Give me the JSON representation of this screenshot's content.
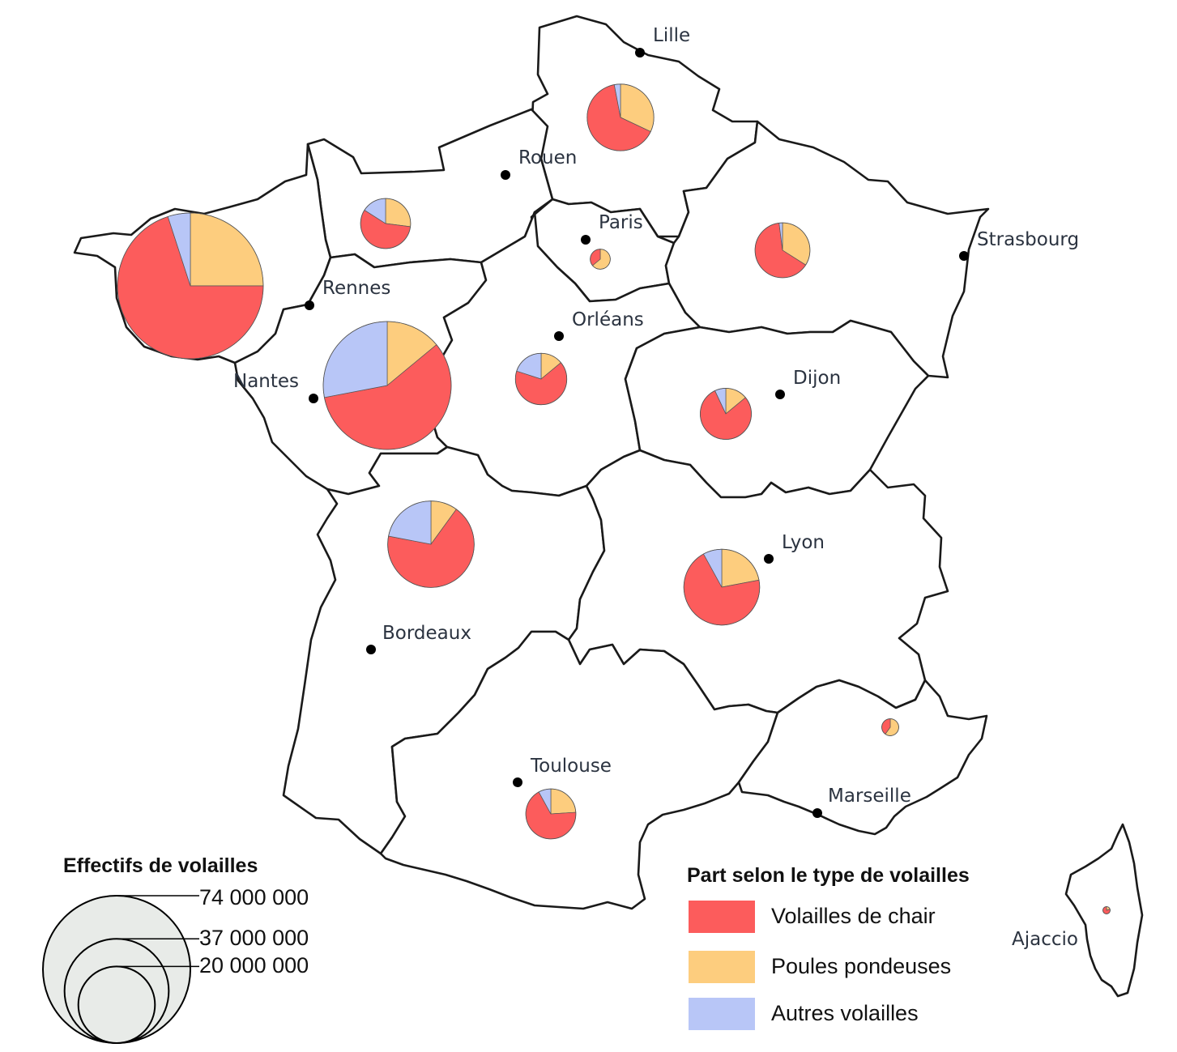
{
  "colors": {
    "chair": "#fc5c5c",
    "pondeuses": "#fdcd7e",
    "autres": "#b8c6f7",
    "legend_circle_fill": "#e8ebe8",
    "city_dot": "#000000"
  },
  "cities": [
    {
      "name": "Lille"
    },
    {
      "name": "Rouen"
    },
    {
      "name": "Paris"
    },
    {
      "name": "Strasbourg"
    },
    {
      "name": "Rennes"
    },
    {
      "name": "Orléans"
    },
    {
      "name": "Nantes"
    },
    {
      "name": "Dijon"
    },
    {
      "name": "Lyon"
    },
    {
      "name": "Bordeaux"
    },
    {
      "name": "Toulouse"
    },
    {
      "name": "Marseille"
    },
    {
      "name": "Ajaccio"
    }
  ],
  "regions": [
    {
      "id": "bretagne",
      "total": 74000000,
      "shares": {
        "chair": 0.7,
        "pondeuses": 0.25,
        "autres": 0.05
      }
    },
    {
      "id": "pays-de-la-loire",
      "total": 57000000,
      "shares": {
        "chair": 0.58,
        "pondeuses": 0.14,
        "autres": 0.28
      }
    },
    {
      "id": "nouvelle-aquitaine",
      "total": 26000000,
      "shares": {
        "chair": 0.68,
        "pondeuses": 0.1,
        "autres": 0.22
      }
    },
    {
      "id": "auvergne-rhone-alpes",
      "total": 20000000,
      "shares": {
        "chair": 0.7,
        "pondeuses": 0.22,
        "autres": 0.08
      }
    },
    {
      "id": "hauts-de-france",
      "total": 15500000,
      "shares": {
        "chair": 0.65,
        "pondeuses": 0.32,
        "autres": 0.03
      }
    },
    {
      "id": "grand-est",
      "total": 10500000,
      "shares": {
        "chair": 0.64,
        "pondeuses": 0.34,
        "autres": 0.02
      }
    },
    {
      "id": "normandie",
      "total": 8700000,
      "shares": {
        "chair": 0.57,
        "pondeuses": 0.27,
        "autres": 0.16
      }
    },
    {
      "id": "bourgogne-franche-comte",
      "total": 9100000,
      "shares": {
        "chair": 0.79,
        "pondeuses": 0.14,
        "autres": 0.07
      }
    },
    {
      "id": "centre-val-de-loire",
      "total": 9200000,
      "shares": {
        "chair": 0.66,
        "pondeuses": 0.14,
        "autres": 0.2
      }
    },
    {
      "id": "occitanie",
      "total": 8700000,
      "shares": {
        "chair": 0.68,
        "pondeuses": 0.24,
        "autres": 0.08
      }
    },
    {
      "id": "ile-de-france",
      "total": 1400000,
      "shares": {
        "chair": 0.36,
        "pondeuses": 0.64,
        "autres": 0.0
      }
    },
    {
      "id": "provence-alpes-cote-d-azur",
      "total": 1000000,
      "shares": {
        "chair": 0.4,
        "pondeuses": 0.6,
        "autres": 0.0
      }
    },
    {
      "id": "corse",
      "total": 100000,
      "shares": {
        "chair": 0.8,
        "pondeuses": 0.2,
        "autres": 0.0
      }
    }
  ],
  "size_legend": {
    "title": "Effectifs de volailles",
    "items": [
      {
        "label": "74 000 000",
        "value": 74000000
      },
      {
        "label": "37 000 000",
        "value": 37000000
      },
      {
        "label": "20 000 000",
        "value": 20000000
      }
    ]
  },
  "type_legend": {
    "title": "Part selon le type de volailles",
    "items": [
      {
        "key": "chair",
        "label": "Volailles de chair"
      },
      {
        "key": "pondeuses",
        "label": "Poules pondeuses"
      },
      {
        "key": "autres",
        "label": "Autres volailles"
      }
    ]
  }
}
